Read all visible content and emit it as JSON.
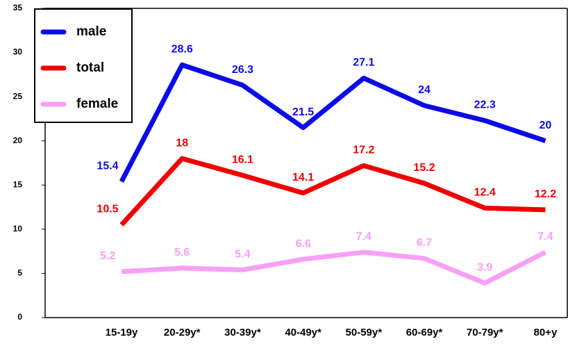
{
  "chart_data": {
    "type": "line",
    "categories": [
      "15-19y",
      "20-29y*",
      "30-39y*",
      "40-49y*",
      "50-59y*",
      "60-69y*",
      "70-79y*",
      "80+y"
    ],
    "series": [
      {
        "name": "male",
        "color": "#0b0be6",
        "values": [
          15.4,
          28.6,
          26.3,
          21.5,
          27.1,
          24,
          22.3,
          20
        ]
      },
      {
        "name": "total",
        "color": "#ee0000",
        "values": [
          10.5,
          18,
          16.1,
          14.1,
          17.2,
          15.2,
          12.4,
          12.2
        ]
      },
      {
        "name": "female",
        "color": "#f7a0f7",
        "values": [
          5.2,
          5.6,
          5.4,
          6.6,
          7.4,
          6.7,
          3.9,
          7.4
        ]
      }
    ],
    "ylim": [
      0,
      35
    ],
    "yticks": [
      0,
      5,
      10,
      15,
      20,
      25,
      30,
      35
    ],
    "legend": "upper left"
  }
}
